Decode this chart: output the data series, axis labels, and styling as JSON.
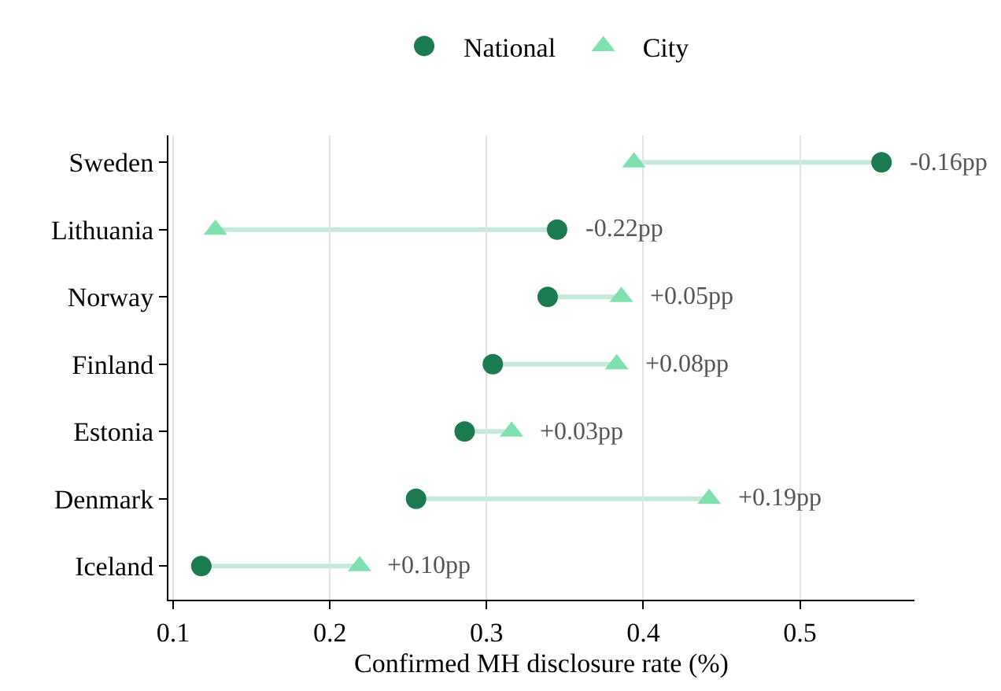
{
  "chart_data": {
    "type": "scatter",
    "orientation": "horizontal",
    "xlabel": "Confirmed MH disclosure rate (%)",
    "categories": [
      "Sweden",
      "Lithuania",
      "Norway",
      "Finland",
      "Estonia",
      "Denmark",
      "Iceland"
    ],
    "series": [
      {
        "name": "National",
        "color": "#1b7a4f",
        "marker": "circle",
        "values": [
          0.552,
          0.345,
          0.339,
          0.304,
          0.286,
          0.255,
          0.118
        ]
      },
      {
        "name": "City",
        "color": "#80e0b0",
        "marker": "triangle",
        "values": [
          0.394,
          0.127,
          0.386,
          0.383,
          0.316,
          0.442,
          0.219
        ]
      }
    ],
    "xlim": [
      0.097,
      0.573
    ],
    "xticks": [
      0.1,
      0.2,
      0.3,
      0.4,
      0.5
    ],
    "grid": "x",
    "legend": "top",
    "annotations": [
      {
        "text": "-0.16pp",
        "x": 0.552,
        "y": "Sweden"
      },
      {
        "text": "-0.22pp",
        "x": 0.345,
        "y": "Lithuania"
      },
      {
        "text": "+0.05pp",
        "x": 0.386,
        "y": "Norway"
      },
      {
        "text": "+0.08pp",
        "x": 0.383,
        "y": "Finland"
      },
      {
        "text": "+0.03pp",
        "x": 0.316,
        "y": "Estonia"
      },
      {
        "text": "+0.19pp",
        "x": 0.442,
        "y": "Denmark"
      },
      {
        "text": "+0.10pp",
        "x": 0.219,
        "y": "Iceland"
      }
    ]
  }
}
